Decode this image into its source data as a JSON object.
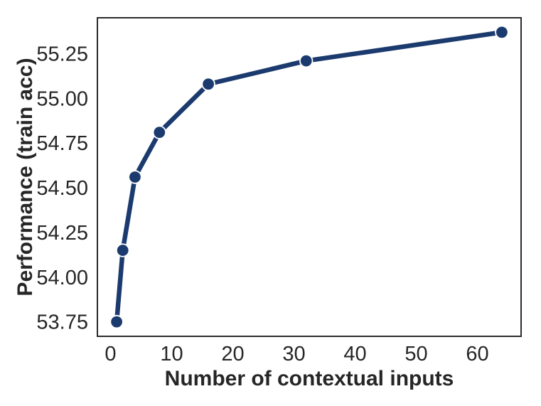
{
  "chart_data": {
    "type": "line",
    "title": "",
    "xlabel": "Number of contextual inputs",
    "ylabel": "Performance (train acc)",
    "x": [
      1,
      2,
      4,
      8,
      16,
      32,
      64
    ],
    "y": [
      53.75,
      54.15,
      54.56,
      54.81,
      55.08,
      55.21,
      55.37
    ],
    "series": [
      {
        "name": "performance",
        "x": [
          1,
          2,
          4,
          8,
          16,
          32,
          64
        ],
        "y": [
          53.75,
          54.15,
          54.56,
          54.81,
          55.08,
          55.21,
          55.37
        ]
      }
    ],
    "xticks": [
      0,
      10,
      20,
      30,
      40,
      50,
      60
    ],
    "yticks": [
      53.75,
      54.0,
      54.25,
      54.5,
      54.75,
      55.0,
      55.25
    ],
    "ytick_decimals": 2,
    "xlim": [
      -2.15,
      67.15
    ],
    "ylim": [
      53.669,
      55.451
    ],
    "grid": false,
    "legend_position": "none",
    "marker": "circle",
    "colors": {
      "line": "#1b3a6e",
      "marker_fill": "#1b3a6e",
      "marker_edge": "#ffffff",
      "spine": "#2b2b2b",
      "text": "#262626",
      "background": "#ffffff"
    },
    "style": {
      "line_width": 6.5,
      "marker_radius": 8.8,
      "marker_edge_width": 1.8,
      "spine_width": 2
    }
  }
}
